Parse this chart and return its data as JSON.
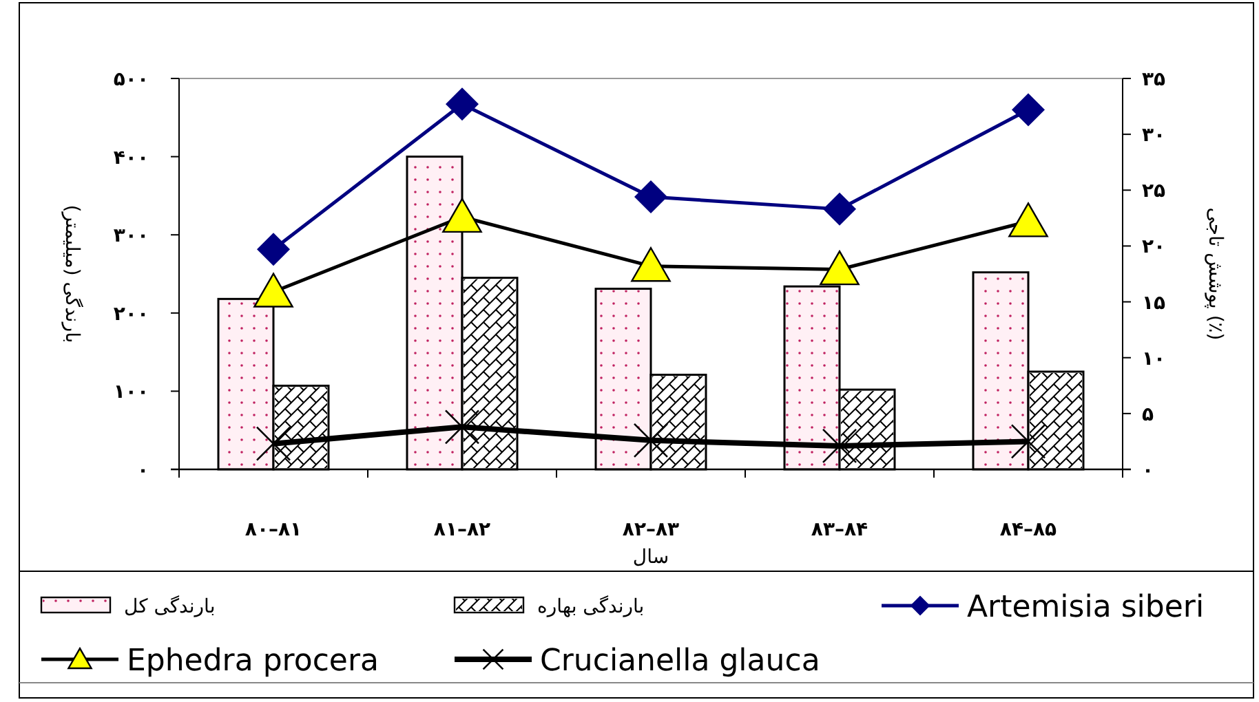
{
  "chart_data": {
    "type": "bar",
    "xlabel": "سال",
    "ylabel": "بارندگی (میلیمتر)",
    "y2label": "پوشش تاجی (٪)",
    "categories": [
      "۸۰–۸۱",
      "۸۱–۸۲",
      "۸۲–۸۳",
      "۸۳–۸۴",
      "۸۴–۸۵"
    ],
    "ylim": [
      0,
      500
    ],
    "yticks": [
      {
        "value": 0,
        "label": "۰"
      },
      {
        "value": 100,
        "label": "۱۰۰"
      },
      {
        "value": 200,
        "label": "۲۰۰"
      },
      {
        "value": 300,
        "label": "۳۰۰"
      },
      {
        "value": 400,
        "label": "۴۰۰"
      },
      {
        "value": 500,
        "label": "۵۰۰"
      }
    ],
    "y2lim": [
      0,
      35
    ],
    "y2ticks": [
      {
        "value": 0,
        "label": "۰"
      },
      {
        "value": 5,
        "label": "۵"
      },
      {
        "value": 10,
        "label": "۱۰"
      },
      {
        "value": 15,
        "label": "۱۵"
      },
      {
        "value": 20,
        "label": "۲۰"
      },
      {
        "value": 25,
        "label": "۲۵"
      },
      {
        "value": 30,
        "label": "۳۰"
      },
      {
        "value": 35,
        "label": "۳۵"
      }
    ],
    "legend": "bottom",
    "grid": false,
    "series": [
      {
        "name": "بارندگی کل",
        "type": "bar",
        "color": "#fff0f5",
        "values": [
          218,
          400,
          231,
          234,
          252
        ]
      },
      {
        "name": "بارندگی بهاره",
        "type": "bar",
        "color": "#ffffff",
        "values": [
          107,
          245,
          121,
          102,
          125
        ]
      },
      {
        "name": "Artemisia siberi",
        "type": "line",
        "axis": "y2",
        "marker": "diamond",
        "color": "#000080",
        "values": [
          19.7,
          32.7,
          24.4,
          23.3,
          32.2
        ]
      },
      {
        "name": "Ephedra procera",
        "type": "line",
        "axis": "y2",
        "marker": "triangle",
        "color": "#000000",
        "values": [
          15.9,
          22.6,
          18.2,
          17.9,
          22.2
        ]
      },
      {
        "name": "Crucianella glauca",
        "type": "line",
        "axis": "y2",
        "marker": "cross",
        "color": "#000000",
        "values": [
          2.3,
          3.8,
          2.6,
          2.1,
          2.5
        ]
      }
    ]
  }
}
